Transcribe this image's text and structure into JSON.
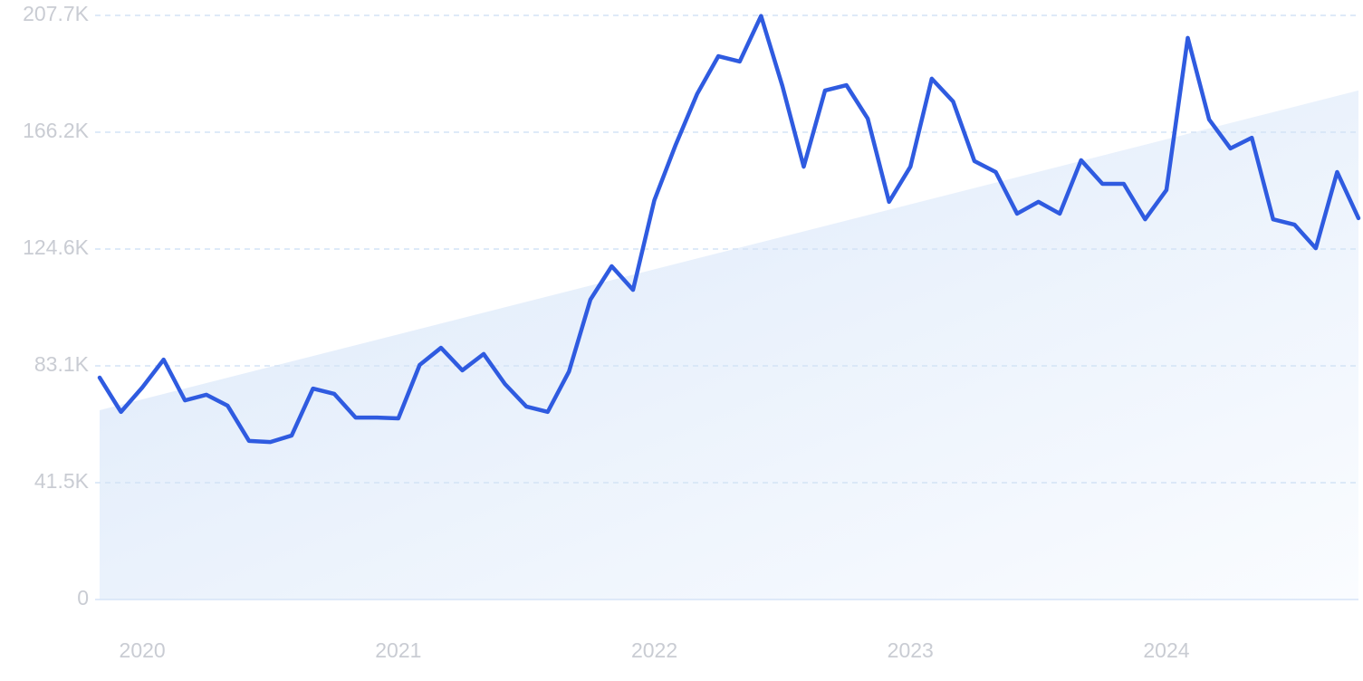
{
  "chart_data": {
    "type": "line",
    "categories": [
      null,
      null,
      "2020",
      null,
      null,
      null,
      null,
      null,
      null,
      null,
      null,
      null,
      null,
      null,
      "2021",
      null,
      null,
      null,
      null,
      null,
      null,
      null,
      null,
      null,
      null,
      null,
      "2022",
      null,
      null,
      null,
      null,
      null,
      null,
      null,
      null,
      null,
      null,
      null,
      "2023",
      null,
      null,
      null,
      null,
      null,
      null,
      null,
      null,
      null,
      null,
      null,
      "2024",
      null,
      null,
      null,
      null,
      null,
      null,
      null,
      null,
      null
    ],
    "values": [
      78900,
      66700,
      75400,
      85300,
      70800,
      72800,
      68900,
      56400,
      56000,
      58300,
      75000,
      73100,
      64700,
      64700,
      64400,
      83400,
      89500,
      81500,
      87300,
      76600,
      68600,
      66700,
      81100,
      106600,
      118500,
      110100,
      142000,
      161700,
      179700,
      193200,
      191300,
      207500,
      182600,
      153900,
      181000,
      182900,
      171000,
      141400,
      153900,
      185200,
      177100,
      155900,
      152000,
      137200,
      141400,
      137200,
      156200,
      147800,
      147800,
      135200,
      145600,
      199700,
      170700,
      160400,
      164200,
      135200,
      133300,
      124900,
      152000,
      135600
    ],
    "color": "#2f5be0",
    "trend": [
      67300,
      181000
    ],
    "ylim": [
      0,
      207700
    ],
    "yticks": [
      0,
      {
        "value": 41540,
        "label": "41.5K"
      },
      {
        "value": 83080,
        "label": "83.1K"
      },
      {
        "value": 124620,
        "label": "124.6K"
      },
      {
        "value": 166160,
        "label": "166.2K"
      },
      {
        "value": 207700,
        "label": "207.7K"
      }
    ],
    "grid": true
  }
}
